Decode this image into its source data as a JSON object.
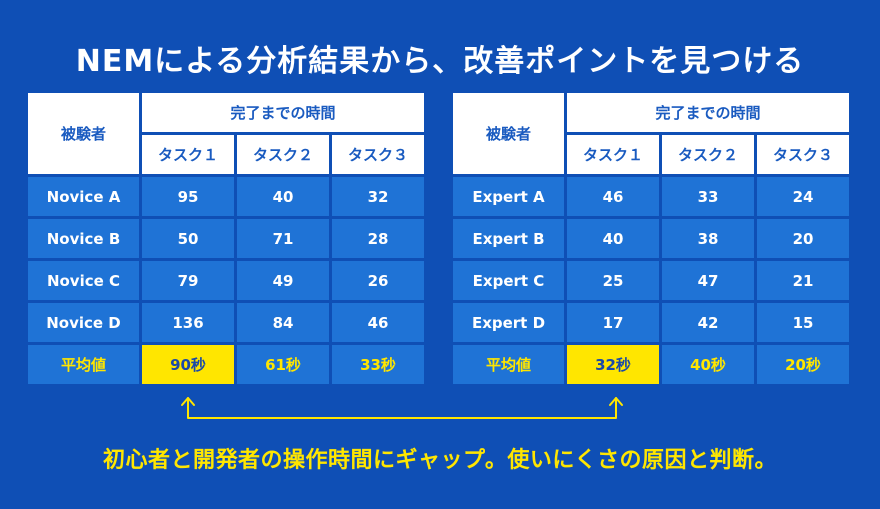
{
  "title": "NEMによる分析結果から、改善ポイントを見つける",
  "left_table": {
    "subject_header": "被験者",
    "group_header": "完了までの時間",
    "tasks": [
      "タスク１",
      "タスク２",
      "タスク３"
    ],
    "rows": [
      {
        "name": "Novice A",
        "values": [
          "95",
          "40",
          "32"
        ]
      },
      {
        "name": "Novice B",
        "values": [
          "50",
          "71",
          "28"
        ]
      },
      {
        "name": "Novice C",
        "values": [
          "79",
          "49",
          "26"
        ]
      },
      {
        "name": "Novice D",
        "values": [
          "136",
          "84",
          "46"
        ]
      }
    ],
    "avg_label": "平均値",
    "avg_values": [
      "90秒",
      "61秒",
      "33秒"
    ]
  },
  "right_table": {
    "subject_header": "被験者",
    "group_header": "完了までの時間",
    "tasks": [
      "タスク１",
      "タスク２",
      "タスク３"
    ],
    "rows": [
      {
        "name": "Expert A",
        "values": [
          "46",
          "33",
          "24"
        ]
      },
      {
        "name": "Expert B",
        "values": [
          "40",
          "38",
          "20"
        ]
      },
      {
        "name": "Expert C",
        "values": [
          "25",
          "47",
          "21"
        ]
      },
      {
        "name": "Expert D",
        "values": [
          "17",
          "42",
          "15"
        ]
      }
    ],
    "avg_label": "平均値",
    "avg_values": [
      "32秒",
      "40秒",
      "20秒"
    ]
  },
  "caption": "初心者と開発者の操作時間にギャップ。使いにくさの原因と判断。",
  "colors": {
    "background": "#0f4fb5",
    "cell": "#1f73d6",
    "header": "#ffffff",
    "highlight": "#ffe600"
  }
}
